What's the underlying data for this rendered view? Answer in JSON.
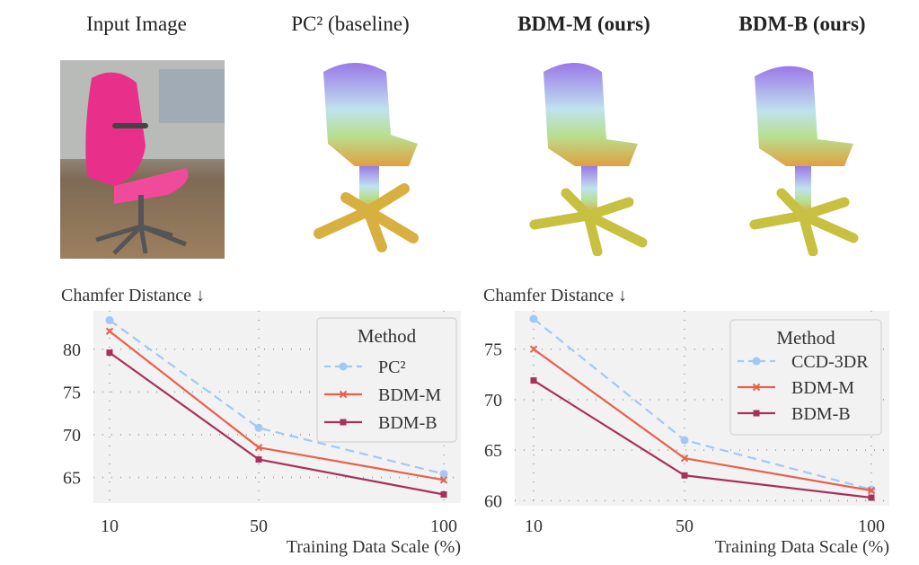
{
  "headers": [
    "Input Image",
    "PC² (baseline)",
    "BDM-M (ours)",
    "BDM-B (ours)"
  ],
  "chart_data": [
    {
      "type": "line",
      "ylabel": "Chamfer Distance ↓",
      "xlabel": "Training Data Scale (%)",
      "categories": [
        "10",
        "50",
        "100"
      ],
      "yticks": [
        65,
        70,
        75,
        80
      ],
      "ylim": [
        62,
        84.5
      ],
      "grid": true,
      "legend": {
        "title": "Method",
        "placement": "top-right"
      },
      "series": [
        {
          "name": "PC²",
          "values": [
            83.4,
            70.8,
            65.4
          ],
          "color": "#a1c9f4",
          "style": "dashed",
          "marker": "circle"
        },
        {
          "name": "BDM-M",
          "values": [
            82.1,
            68.5,
            64.7
          ],
          "color": "#e8604c",
          "style": "solid",
          "marker": "x"
        },
        {
          "name": "BDM-B",
          "values": [
            79.6,
            67.1,
            63.0
          ],
          "color": "#a8305c",
          "style": "solid",
          "marker": "square"
        }
      ]
    },
    {
      "type": "line",
      "ylabel": "Chamfer Distance ↓",
      "xlabel": "Training Data Scale (%)",
      "categories": [
        "10",
        "50",
        "100"
      ],
      "yticks": [
        60,
        65,
        70,
        75
      ],
      "ylim": [
        59.5,
        78.8
      ],
      "grid": true,
      "legend": {
        "title": "Method",
        "placement": "top-right"
      },
      "series": [
        {
          "name": "CCD-3DR",
          "values": [
            78.0,
            66.0,
            61.1
          ],
          "color": "#a1c9f4",
          "style": "dashed",
          "marker": "circle"
        },
        {
          "name": "BDM-M",
          "values": [
            75.0,
            64.2,
            61.0
          ],
          "color": "#e8604c",
          "style": "solid",
          "marker": "x"
        },
        {
          "name": "BDM-B",
          "values": [
            71.9,
            62.5,
            60.3
          ],
          "color": "#a8305c",
          "style": "solid",
          "marker": "square"
        }
      ]
    }
  ]
}
